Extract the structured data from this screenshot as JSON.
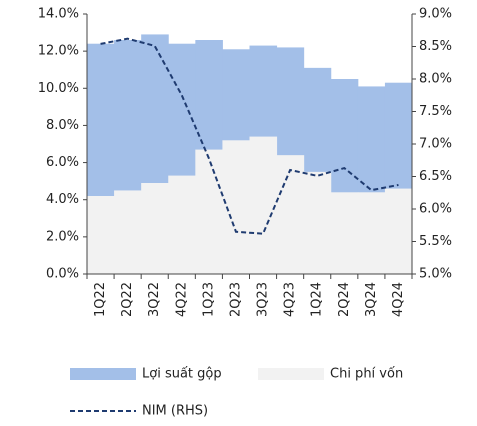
{
  "chart_data": {
    "type": "bar",
    "categories": [
      "1Q22",
      "2Q22",
      "3Q22",
      "4Q22",
      "1Q23",
      "2Q23",
      "3Q23",
      "4Q23",
      "1Q24",
      "2Q24",
      "3Q24",
      "4Q24"
    ],
    "series": [
      {
        "name": "Lợi suất gộp",
        "color": "#a3bfe8",
        "values": [
          12.4,
          12.6,
          12.9,
          12.4,
          12.6,
          12.1,
          12.3,
          12.2,
          11.1,
          10.5,
          10.1,
          10.3
        ]
      },
      {
        "name": "Chi phí vốn",
        "color": "#f2f2f2",
        "values": [
          4.2,
          4.5,
          4.9,
          5.3,
          6.7,
          7.2,
          7.4,
          6.4,
          5.5,
          4.4,
          4.4,
          4.6
        ]
      },
      {
        "name": "NIM (RHS)",
        "type": "line",
        "axis": "y2",
        "color": "#1f3b70",
        "values": [
          8.54,
          8.62,
          8.51,
          7.75,
          6.78,
          5.65,
          5.62,
          6.6,
          6.51,
          6.63,
          6.29,
          6.37
        ]
      }
    ],
    "ylim": [
      0,
      14
    ],
    "yticks": [
      {
        "value": 0,
        "label": "0.0%"
      },
      {
        "value": 2,
        "label": "2.0%"
      },
      {
        "value": 4,
        "label": "4.0%"
      },
      {
        "value": 6,
        "label": "6.0%"
      },
      {
        "value": 8,
        "label": "8.0%"
      },
      {
        "value": 10,
        "label": "10.0%"
      },
      {
        "value": 12,
        "label": "12.0%"
      },
      {
        "value": 14,
        "label": "14.0%"
      }
    ],
    "y2lim": [
      5,
      9
    ],
    "y2ticks": [
      {
        "value": 5,
        "label": "5.0%"
      },
      {
        "value": 5.5,
        "label": "5.5%"
      },
      {
        "value": 6,
        "label": "6.0%"
      },
      {
        "value": 6.5,
        "label": "6.5%"
      },
      {
        "value": 7,
        "label": "7.0%"
      },
      {
        "value": 7.5,
        "label": "7.5%"
      },
      {
        "value": 8,
        "label": "8.0%"
      },
      {
        "value": 8.5,
        "label": "8.5%"
      },
      {
        "value": 9,
        "label": "9.0%"
      }
    ]
  }
}
